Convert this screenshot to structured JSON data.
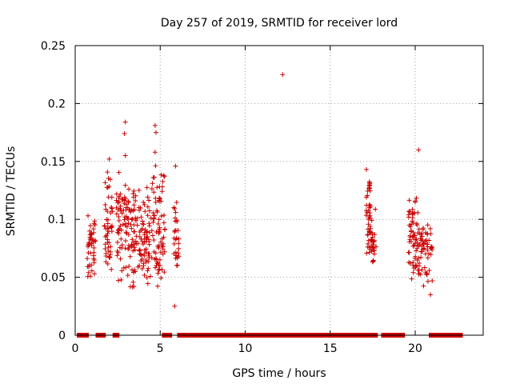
{
  "chart_data": {
    "type": "scatter",
    "title": "Day 257 of 2019, SRMTID for receiver lord",
    "xlabel": "GPS time / hours",
    "ylabel": "SRMTID / TECUs",
    "xlim": [
      0,
      24
    ],
    "ylim": [
      0,
      0.25
    ],
    "x_ticks": [
      0,
      5,
      10,
      15,
      20
    ],
    "x_tick_labels": [
      "0",
      "5",
      "10",
      "15",
      "20"
    ],
    "y_ticks": [
      0,
      0.05,
      0.1,
      0.15,
      0.2,
      0.25
    ],
    "y_tick_labels": [
      "0",
      "0.05",
      "0.1",
      "0.15",
      "0.2",
      "0.25"
    ],
    "grid": true,
    "marker": "plus",
    "color": "#cc0000",
    "series": [
      {
        "name": "SRMTID",
        "clusters": [
          {
            "x_range": [
              0.7,
              1.2
            ],
            "y_range": [
              0.045,
              0.11
            ],
            "count": 45
          },
          {
            "x_range": [
              1.7,
              2.2
            ],
            "y_range": [
              0.035,
              0.155
            ],
            "count": 50
          },
          {
            "x_range": [
              2.4,
              3.3
            ],
            "y_range": [
              0.04,
              0.15
            ],
            "count": 80
          },
          {
            "x_range": [
              3.3,
              4.4
            ],
            "y_range": [
              0.035,
              0.13
            ],
            "count": 110
          },
          {
            "x_range": [
              4.4,
              5.3
            ],
            "y_range": [
              0.035,
              0.15
            ],
            "count": 80
          },
          {
            "x_range": [
              5.8,
              6.1
            ],
            "y_range": [
              0.045,
              0.125
            ],
            "count": 30
          },
          {
            "x_range": [
              17.1,
              17.4
            ],
            "y_range": [
              0.06,
              0.145
            ],
            "count": 45
          },
          {
            "x_range": [
              17.4,
              17.7
            ],
            "y_range": [
              0.05,
              0.11
            ],
            "count": 25
          },
          {
            "x_range": [
              19.6,
              20.2
            ],
            "y_range": [
              0.035,
              0.125
            ],
            "count": 60
          },
          {
            "x_range": [
              20.2,
              21.0
            ],
            "y_range": [
              0.035,
              0.115
            ],
            "count": 60
          }
        ],
        "outliers": [
          {
            "x": 12.2,
            "y": 0.225
          },
          {
            "x": 2.95,
            "y": 0.184
          },
          {
            "x": 2.9,
            "y": 0.174
          },
          {
            "x": 4.7,
            "y": 0.181
          },
          {
            "x": 4.75,
            "y": 0.175
          },
          {
            "x": 4.7,
            "y": 0.158
          },
          {
            "x": 5.9,
            "y": 0.146
          },
          {
            "x": 5.85,
            "y": 0.025
          },
          {
            "x": 20.2,
            "y": 0.16
          },
          {
            "x": 2.0,
            "y": 0.152
          },
          {
            "x": 2.95,
            "y": 0.155
          },
          {
            "x": 21.0,
            "y": 0.047
          },
          {
            "x": 20.9,
            "y": 0.035
          }
        ],
        "zero_bands": [
          [
            0.1,
            0.8
          ],
          [
            1.2,
            1.8
          ],
          [
            2.2,
            2.6
          ],
          [
            5.1,
            5.7
          ],
          [
            6.0,
            17.8
          ],
          [
            18.0,
            19.4
          ],
          [
            20.8,
            22.8
          ]
        ]
      }
    ]
  }
}
